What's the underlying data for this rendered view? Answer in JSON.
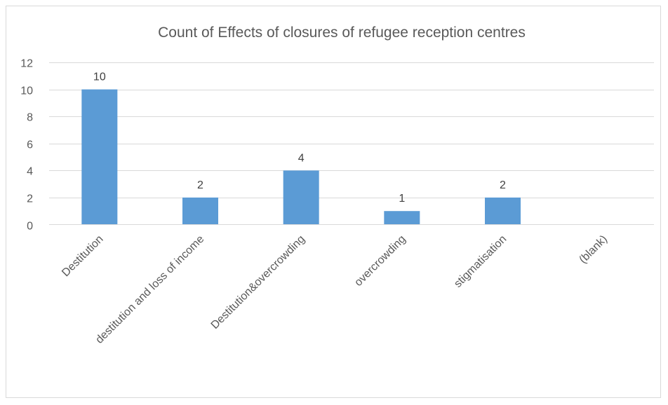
{
  "chart_data": {
    "type": "bar",
    "title": "Count of Effects of closures of refugee reception centres",
    "xlabel": "",
    "ylabel": "",
    "categories": [
      "Destitution",
      "destitution and loss of income",
      "Destitution&overcrowding",
      "overcrowding",
      "stigmatisation",
      "(blank)"
    ],
    "values": [
      10,
      2,
      4,
      1,
      2,
      null
    ],
    "data_labels": [
      "10",
      "2",
      "4",
      "1",
      "2",
      ""
    ],
    "ylim": [
      0,
      12
    ],
    "yticks": [
      0,
      2,
      4,
      6,
      8,
      10,
      12
    ],
    "grid": true,
    "legend": "none",
    "bar_color": "#5b9bd5"
  }
}
